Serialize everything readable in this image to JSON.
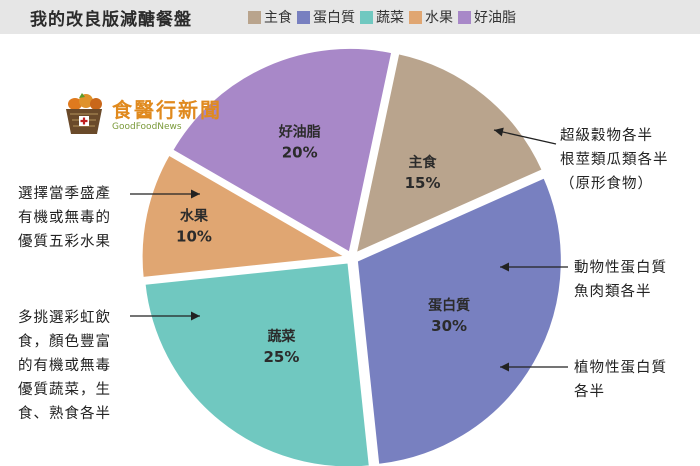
{
  "header": {
    "title": "我的改良版減醣餐盤"
  },
  "logo": {
    "name": "食醫行新聞",
    "subtitle": "GoodFoodNews"
  },
  "colors": {
    "header_bg": "#e6e6e6",
    "grain": "#b9a48d",
    "protein": "#7880c0",
    "veg": "#70c8c0",
    "fruit": "#e0a672",
    "fat": "#a888c8"
  },
  "chart_data": {
    "type": "pie",
    "title": "我的改良版減醣餐盤",
    "legend_position": "top",
    "slices": [
      {
        "name": "主食",
        "value": 15,
        "label": "15%",
        "color": "#b9a48d"
      },
      {
        "name": "蛋白質",
        "value": 30,
        "label": "30%",
        "color": "#7880c0"
      },
      {
        "name": "蔬菜",
        "value": 25,
        "label": "25%",
        "color": "#70c8c0"
      },
      {
        "name": "水果",
        "value": 10,
        "label": "10%",
        "color": "#e0a672"
      },
      {
        "name": "好油脂",
        "value": 20,
        "label": "20%",
        "color": "#a888c8"
      }
    ]
  },
  "notes": {
    "grain": [
      "超級穀物各半",
      "根莖類瓜類各半",
      "（原形食物）"
    ],
    "animal_protein": [
      "動物性蛋白質",
      "魚肉類各半"
    ],
    "plant_protein": [
      "植物性蛋白質",
      "各半"
    ],
    "fruit": [
      "選擇當季盛產",
      "有機或無毒的",
      "優質五彩水果"
    ],
    "veg": [
      "多挑選彩虹飲",
      "食，顏色豐富",
      "的有機或無毒",
      "優質蔬菜，生",
      "食、熟食各半"
    ]
  }
}
